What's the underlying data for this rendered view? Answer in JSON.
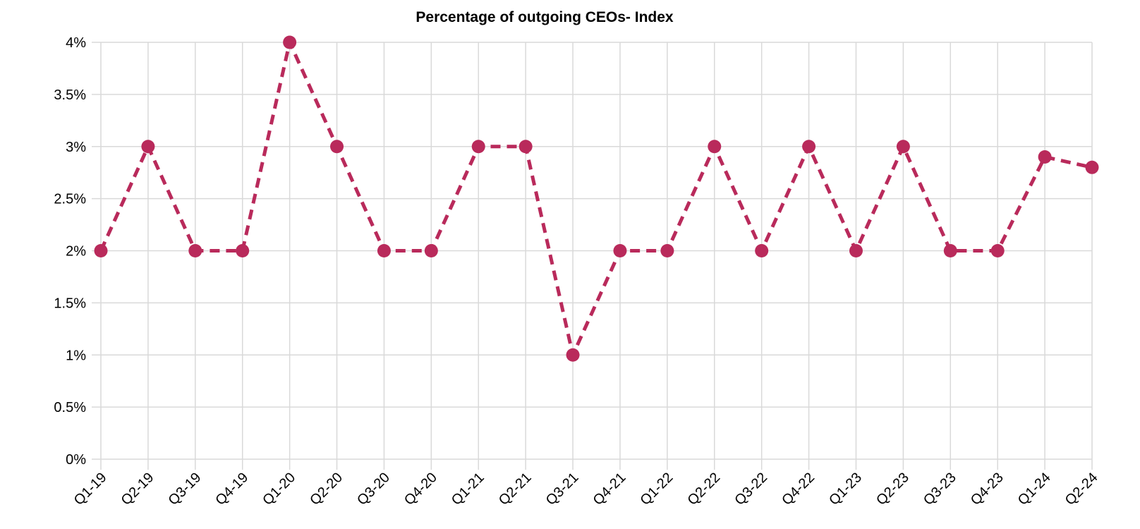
{
  "chart_data": {
    "type": "line",
    "title": "Percentage of outgoing CEOs- Index",
    "categories": [
      "Q1-19",
      "Q2-19",
      "Q3-19",
      "Q4-19",
      "Q1-20",
      "Q2-20",
      "Q3-20",
      "Q4-20",
      "Q1-21",
      "Q2-21",
      "Q3-21",
      "Q4-21",
      "Q1-22",
      "Q2-22",
      "Q3-22",
      "Q4-22",
      "Q1-23",
      "Q2-23",
      "Q3-23",
      "Q4-23",
      "Q1-24",
      "Q2-24"
    ],
    "values": [
      2,
      3,
      2,
      2,
      4,
      3,
      2,
      2,
      3,
      3,
      1,
      2,
      2,
      3,
      2,
      3,
      2,
      3,
      2,
      2,
      2.9,
      2.8
    ],
    "unit": "%",
    "xlabel": "",
    "ylabel": "",
    "ylim": [
      0,
      4
    ],
    "ytick_step": 0.5,
    "ytick_labels": [
      "0%",
      "0.5%",
      "1%",
      "1.5%",
      "2%",
      "2.5%",
      "3%",
      "3.5%",
      "4%"
    ],
    "grid": "on",
    "legend": "none",
    "line_style": "dashed",
    "marker": "circle",
    "colors": {
      "line": "#b92a5b",
      "marker": "#b92a5b",
      "grid": "#d9d9d9",
      "text": "#000000",
      "background": "#ffffff"
    }
  }
}
